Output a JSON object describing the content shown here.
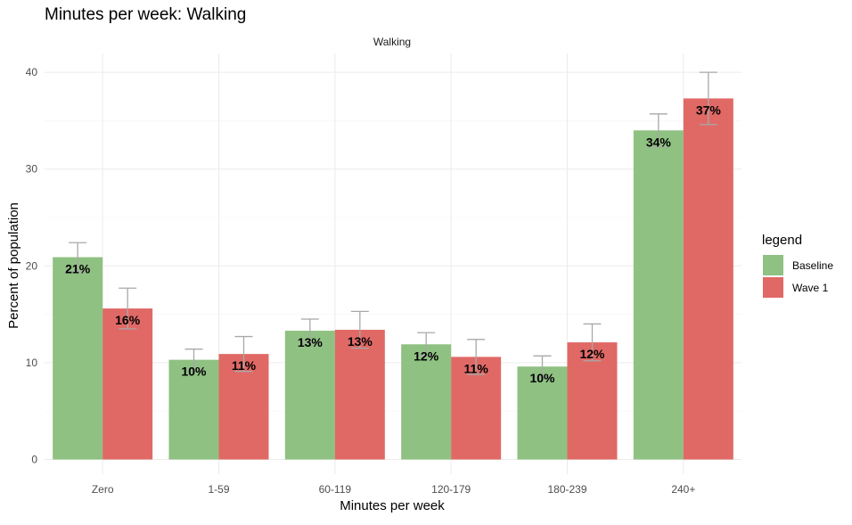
{
  "chart_data": {
    "type": "bar",
    "title": "Minutes per week: Walking",
    "facet_label": "Walking",
    "xlabel": "Minutes per week",
    "ylabel": "Percent of population",
    "ylim": [
      0,
      42
    ],
    "yticks": [
      0,
      10,
      20,
      30,
      40
    ],
    "grid": true,
    "categories": [
      "Zero",
      "1-59",
      "60-119",
      "120-179",
      "180-239",
      "240+"
    ],
    "series": [
      {
        "name": "Baseline",
        "color": "#8fc182",
        "values": [
          20.9,
          10.3,
          13.3,
          11.9,
          9.6,
          34.0
        ],
        "error_upper": [
          22.4,
          11.4,
          14.5,
          13.1,
          10.7,
          35.7
        ],
        "error_lower": [
          19.4,
          9.2,
          12.1,
          10.7,
          8.5,
          32.3
        ],
        "labels": [
          "21%",
          "10%",
          "13%",
          "12%",
          "10%",
          "34%"
        ]
      },
      {
        "name": "Wave 1",
        "color": "#e06966",
        "values": [
          15.6,
          10.9,
          13.4,
          10.6,
          12.1,
          37.3
        ],
        "error_upper": [
          17.7,
          12.7,
          15.3,
          12.4,
          14.0,
          40.0
        ],
        "error_lower": [
          13.5,
          9.1,
          11.5,
          8.8,
          10.2,
          34.6
        ],
        "labels": [
          "16%",
          "11%",
          "13%",
          "11%",
          "12%",
          "37%"
        ]
      }
    ],
    "legend": {
      "title": "legend",
      "position": "right"
    }
  }
}
